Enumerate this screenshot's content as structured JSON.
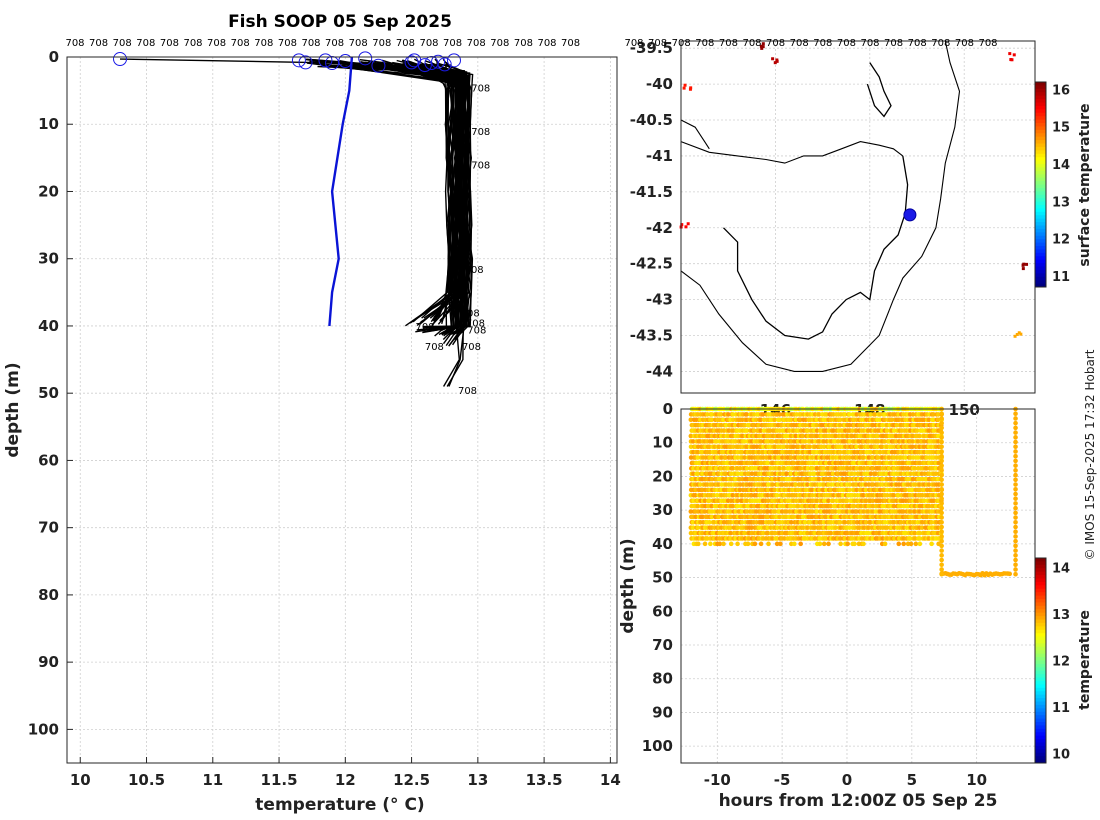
{
  "title": "Fish SOOP 05 Sep 2025",
  "credit": "© IMOS 15-Sep-2025 17:32 Hobart",
  "vessel_tag": "708",
  "colors": {
    "profile_mean": "#0a14d6",
    "profile_lines": "#000000",
    "surface_marker": "#1a1ae6",
    "coast": "#000000"
  },
  "chart_data": [
    {
      "name": "profile",
      "type": "line",
      "xlabel": "temperature (° C)",
      "ylabel": "depth (m)",
      "xlim": [
        9.9,
        14.05
      ],
      "ylim": [
        105,
        0
      ],
      "xticks": [
        "10",
        "10.5",
        "11",
        "11.5",
        "12",
        "12.5",
        "13",
        "13.5",
        "14"
      ],
      "yticks": [
        "0",
        "10",
        "20",
        "30",
        "40",
        "50",
        "60",
        "70",
        "80",
        "90",
        "100"
      ],
      "grid": true,
      "top_labels_count": 22,
      "series": [
        {
          "name": "mean profile",
          "temps": [
            12.05,
            12.03,
            11.98,
            11.9,
            11.95,
            11.9,
            11.88
          ],
          "depths": [
            0,
            5,
            10,
            20,
            30,
            35,
            40
          ]
        },
        {
          "name": "surface points",
          "temps": [
            10.3,
            11.65,
            11.7,
            11.85,
            11.9,
            12.0,
            12.15,
            12.25,
            12.5,
            12.52,
            12.6,
            12.65,
            12.7,
            12.75,
            12.82
          ],
          "depths": [
            0.3,
            0.5,
            0.8,
            0.5,
            0.9,
            0.6,
            0.2,
            1.3,
            0.8,
            0.5,
            1.2,
            0.9,
            0.7,
            1.1,
            0.5
          ]
        },
        {
          "name": "profile bundle",
          "temp_range": [
            12.75,
            12.95
          ],
          "depth_range": [
            0,
            49
          ]
        }
      ],
      "labels": [
        {
          "text": "708",
          "temp": 12.95,
          "depth": 4.5
        },
        {
          "text": "708",
          "temp": 12.95,
          "depth": 11
        },
        {
          "text": "708",
          "temp": 12.95,
          "depth": 16
        },
        {
          "text": "708",
          "temp": 12.9,
          "depth": 31.5
        },
        {
          "text": "708",
          "temp": 12.87,
          "depth": 38
        },
        {
          "text": "708",
          "temp": 12.91,
          "depth": 39.5
        },
        {
          "text": "708",
          "temp": 12.92,
          "depth": 40.5
        },
        {
          "text": "708",
          "temp": 12.53,
          "depth": 40
        },
        {
          "text": "708",
          "temp": 12.6,
          "depth": 43
        },
        {
          "text": "708",
          "temp": 12.88,
          "depth": 43
        },
        {
          "text": "708",
          "temp": 12.85,
          "depth": 49.5
        }
      ]
    },
    {
      "name": "map",
      "type": "heatmap",
      "xlim": [
        144.0,
        151.5
      ],
      "ylim": [
        -44.3,
        -39.4
      ],
      "yticks": [
        "-39.5",
        "-40",
        "-40.5",
        "-41",
        "-41.5",
        "-42",
        "-42.5",
        "-43",
        "-43.5",
        "-44"
      ],
      "xticks": [
        "146",
        "148",
        "150"
      ],
      "top_labels_count": 16,
      "colorbar": {
        "label": "surface temperature",
        "range": [
          10.7,
          16.2
        ],
        "ticks": [
          "11",
          "12",
          "13",
          "14",
          "15",
          "16"
        ]
      },
      "vessel_position": {
        "lon": 148.85,
        "lat": -41.82
      },
      "sst_patches": [
        {
          "lon": 145.7,
          "lat": -39.45,
          "value": 16.1
        },
        {
          "lon": 145.95,
          "lat": -39.65,
          "value": 15.9
        },
        {
          "lon": 144.1,
          "lat": -40.05,
          "value": 15.4
        },
        {
          "lon": 144.05,
          "lat": -41.93,
          "value": 15.5
        },
        {
          "lon": 151.1,
          "lat": -43.45,
          "value": 14.6
        },
        {
          "lon": 151.0,
          "lat": -39.6,
          "value": 15.6
        },
        {
          "lon": 151.3,
          "lat": -42.5,
          "value": 16.1
        }
      ]
    },
    {
      "name": "timeseries",
      "type": "scatter",
      "xlabel": "hours from 12:00Z 05 Sep 25",
      "ylabel": "depth (m)",
      "xlim": [
        -12.8,
        14.5
      ],
      "ylim": [
        105,
        0
      ],
      "xticks": [
        "-10",
        "-5",
        "0",
        "5",
        "10"
      ],
      "yticks": [
        "0",
        "10",
        "20",
        "30",
        "40",
        "50",
        "60",
        "70",
        "80",
        "90",
        "100"
      ],
      "colorbar": {
        "label": "temperature",
        "range": [
          9.8,
          14.2
        ],
        "ticks": [
          "10",
          "11",
          "12",
          "13",
          "14"
        ]
      },
      "time_range": [
        -12,
        13
      ],
      "gap_hours": [
        7.3,
        12.7
      ],
      "gap_depth": 49,
      "max_depth_profiles": 41.5,
      "temp_range": [
        12.5,
        13.1
      ]
    }
  ]
}
